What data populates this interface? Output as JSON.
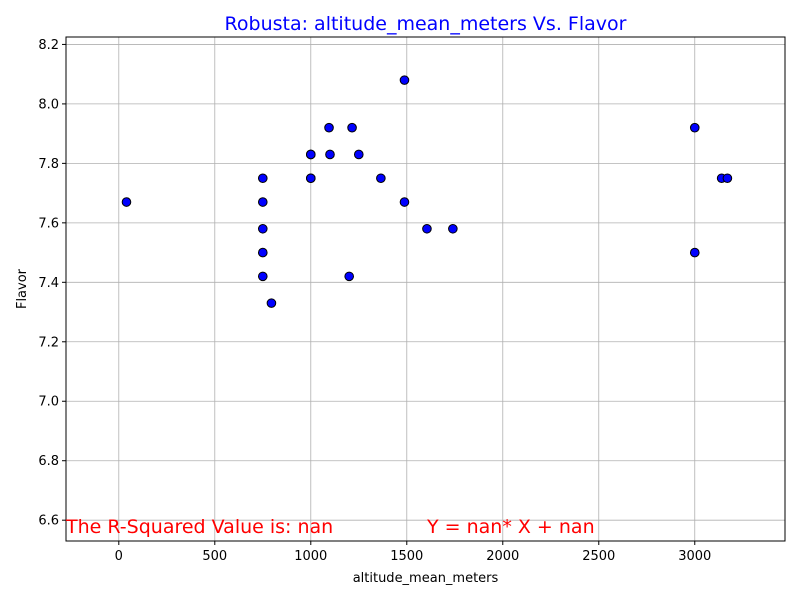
{
  "chart_data": {
    "type": "scatter",
    "title": "Robusta: altitude_mean_meters Vs. Flavor",
    "xlabel": "altitude_mean_meters",
    "ylabel": "Flavor",
    "xlim": [
      -275,
      3470
    ],
    "ylim": [
      6.53,
      8.225
    ],
    "xticks": [
      0,
      500,
      1000,
      1500,
      2000,
      2500,
      3000
    ],
    "yticks": [
      6.6,
      6.8,
      7.0,
      7.2,
      7.4,
      7.6,
      7.8,
      8.0,
      8.2
    ],
    "grid": true,
    "annotations": {
      "r_squared": "The R-Squared Value is: nan",
      "equation": "Y = nan* X + nan"
    },
    "series": [
      {
        "x": [
          40,
          750,
          750,
          750,
          750,
          750,
          795,
          1000,
          1000,
          1000,
          1000,
          1095,
          1100,
          1200,
          1215,
          1250,
          1365,
          1488,
          1488,
          1605,
          1740,
          3000,
          3000,
          3140,
          3170
        ],
        "y": [
          7.67,
          7.75,
          7.67,
          7.58,
          7.5,
          7.42,
          7.33,
          7.83,
          7.83,
          7.75,
          7.75,
          7.92,
          7.83,
          7.42,
          7.92,
          7.83,
          7.75,
          8.08,
          7.67,
          7.58,
          7.58,
          7.92,
          7.5,
          7.75,
          7.75
        ]
      }
    ]
  },
  "colors": {
    "title": "#0000ff",
    "marker_fill": "#0000ff",
    "marker_edge": "#000000",
    "annotation": "#ff0000",
    "grid": "#b0b0b0"
  }
}
